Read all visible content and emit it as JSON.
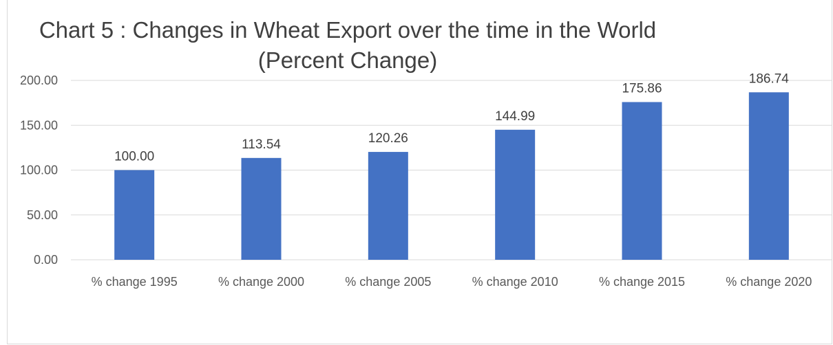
{
  "chart_data": {
    "type": "bar",
    "title_line1": "Chart 5 : Changes in Wheat Export over the time in the World",
    "title_line2": "(Percent Change)",
    "categories": [
      "% change 1995",
      "% change 2000",
      "% change 2005",
      "% change 2010",
      "% change 2015",
      "% change 2020"
    ],
    "values": [
      100.0,
      113.54,
      120.26,
      144.99,
      175.86,
      186.74
    ],
    "data_labels": [
      "100.00",
      "113.54",
      "120.26",
      "144.99",
      "175.86",
      "186.74"
    ],
    "y_ticks": [
      "0.00",
      "50.00",
      "100.00",
      "150.00",
      "200.00"
    ],
    "y_tick_values": [
      0,
      50,
      100,
      150,
      200
    ],
    "ylim": [
      0,
      200
    ],
    "xlabel": "",
    "ylabel": "",
    "grid": true,
    "legend": "none",
    "bar_color": "#4472c4",
    "grid_color": "#d9d9d9"
  }
}
